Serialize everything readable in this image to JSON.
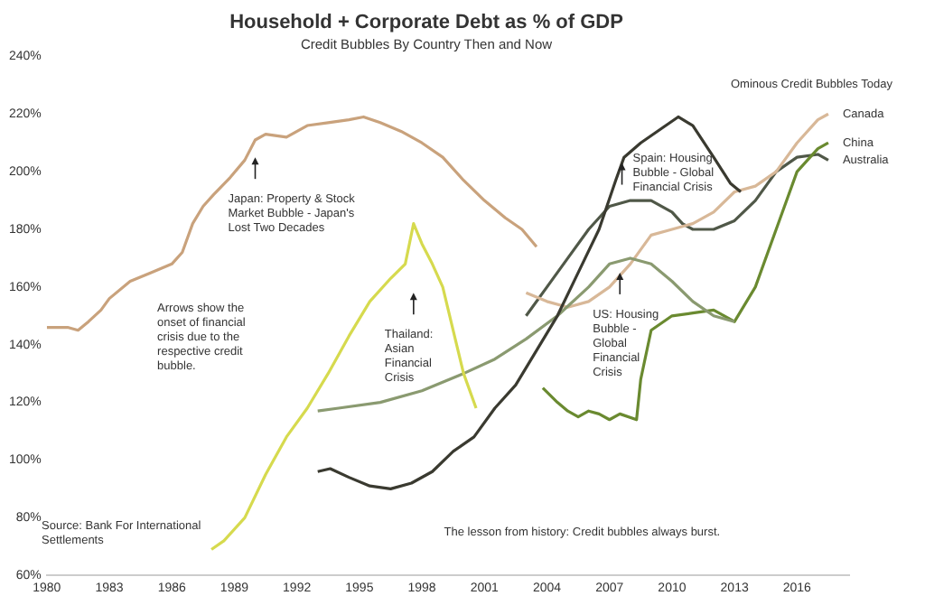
{
  "chart_data": {
    "type": "line",
    "title": "Household + Corporate Debt as % of GDP",
    "subtitle": "Credit Bubbles By Country Then and Now",
    "xlim": [
      1980,
      2018.5
    ],
    "xticks": [
      1980,
      1983,
      1986,
      1989,
      1992,
      1995,
      1998,
      2001,
      2004,
      2007,
      2010,
      2013,
      2016
    ],
    "ylim": [
      60,
      240
    ],
    "yticks": [
      {
        "value": 60,
        "label": "60%"
      },
      {
        "value": 80,
        "label": "80%"
      },
      {
        "value": 100,
        "label": "100%"
      },
      {
        "value": 120,
        "label": "120%"
      },
      {
        "value": 140,
        "label": "140%"
      },
      {
        "value": 160,
        "label": "160%"
      },
      {
        "value": 180,
        "label": "180%"
      },
      {
        "value": 200,
        "label": "200%"
      },
      {
        "value": 220,
        "label": "220%"
      },
      {
        "value": 240,
        "label": "240%"
      }
    ],
    "grid": false,
    "legend": false,
    "marker": "none",
    "line_style": "solid",
    "series": [
      {
        "color": "#c9a27c",
        "x": [
          1980,
          1981,
          1981.5,
          1982,
          1982.6,
          1983,
          1984,
          1985,
          1986,
          1986.5,
          1987,
          1987.5,
          1988,
          1988.8,
          1989.5,
          1990,
          1990.5,
          1991.5,
          1992.5,
          1993.5,
          1994.5,
          1995.2,
          1996,
          1997,
          1998,
          1999,
          2000,
          2001,
          2002,
          2002.8,
          2003.5
        ],
        "values": [
          146,
          146,
          145,
          148,
          152,
          156,
          162,
          165,
          168,
          172,
          182,
          188,
          192,
          198,
          204,
          211,
          213,
          212,
          216,
          217,
          218,
          219,
          217,
          214,
          210,
          205,
          197,
          190,
          184,
          180,
          174
        ]
      },
      {
        "color": "#d6da4e",
        "x": [
          1987.9,
          1988.5,
          1989.5,
          1990.5,
          1991.5,
          1992.5,
          1993.5,
          1994.5,
          1995.5,
          1996.5,
          1997.2,
          1997.6,
          1998,
          1998.5,
          1999,
          1999.5,
          2000,
          2000.6
        ],
        "values": [
          69,
          72,
          80,
          95,
          108,
          118,
          130,
          143,
          155,
          163,
          168,
          182,
          175,
          168,
          160,
          145,
          130,
          118
        ]
      },
      {
        "color": "#3a3a30",
        "x": [
          1993,
          1993.6,
          1994.5,
          1995.5,
          1996.5,
          1997.5,
          1998.5,
          1999.5,
          2000.5,
          2001.5,
          2002.5,
          2003.5,
          2004.5,
          2005.5,
          2006.5,
          2007.3,
          2007.7,
          2008.5,
          2009.5,
          2010.3,
          2011,
          2012,
          2012.8,
          2013.3
        ],
        "values": [
          96,
          97,
          94,
          91,
          90,
          92,
          96,
          103,
          108,
          118,
          126,
          138,
          150,
          165,
          180,
          197,
          205,
          210,
          215,
          219,
          216,
          205,
          196,
          193
        ]
      },
      {
        "color": "#8a9a70",
        "x": [
          1993,
          1994,
          1996,
          1998,
          2000,
          2001.5,
          2003,
          2004.5,
          2006,
          2007,
          2008,
          2009,
          2010,
          2011,
          2012,
          2013
        ],
        "values": [
          117,
          118,
          120,
          124,
          130,
          135,
          142,
          150,
          160,
          168,
          170,
          168,
          162,
          155,
          150,
          148
        ]
      },
      {
        "name": "Canada",
        "color": "#d8b898",
        "x": [
          2003,
          2004,
          2005,
          2006,
          2007,
          2008,
          2009,
          2010,
          2011,
          2012,
          2013,
          2014,
          2015,
          2016,
          2017,
          2017.5
        ],
        "values": [
          158,
          155,
          153,
          155,
          160,
          168,
          178,
          180,
          182,
          186,
          193,
          195,
          200,
          210,
          218,
          220
        ]
      },
      {
        "name": "China",
        "color": "#6a8a30",
        "x": [
          2003.8,
          2004.5,
          2005,
          2005.5,
          2006,
          2006.5,
          2007,
          2007.5,
          2008.3,
          2008.5,
          2009,
          2010,
          2011,
          2012,
          2013,
          2014,
          2015,
          2016,
          2017,
          2017.5
        ],
        "values": [
          125,
          120,
          117,
          115,
          117,
          116,
          114,
          116,
          114,
          128,
          145,
          150,
          151,
          152,
          148,
          160,
          180,
          200,
          208,
          210
        ]
      },
      {
        "name": "Australia",
        "color": "#505848",
        "x": [
          2003,
          2004,
          2005,
          2006,
          2007,
          2008,
          2009,
          2010,
          2010.5,
          2011,
          2012,
          2013,
          2014,
          2015,
          2016,
          2017,
          2017.5
        ],
        "values": [
          150,
          160,
          170,
          180,
          188,
          190,
          190,
          186,
          182,
          180,
          180,
          183,
          190,
          200,
          205,
          206,
          204
        ]
      }
    ],
    "annotations": [
      {
        "text": "Japan: Property & Stock Market Bubble - Japan's Lost Two Decades",
        "x": 1990,
        "y": 205
      },
      {
        "text": "Thailand: Asian Financial Crisis",
        "x": 1997.6,
        "y": 158
      },
      {
        "text": "Spain: Housing Bubble - Global Financial Crisis",
        "x": 2007.6,
        "y": 203
      },
      {
        "text": "US: Housing Bubble - Global Financial Crisis",
        "x": 2007.5,
        "y": 165
      },
      "Arrows show the onset of financial crisis due to the respective credit bubble.",
      "Source: Bank For International Settlements",
      "The lesson from history: Credit bubbles always burst.",
      "Ominous Credit Bubbles Today"
    ]
  }
}
